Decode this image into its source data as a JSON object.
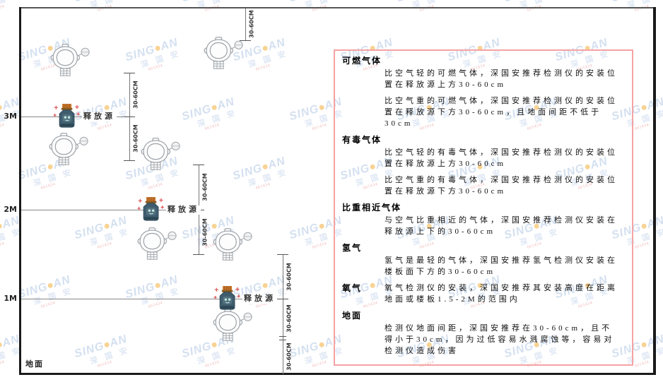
{
  "diagram": {
    "axis": [
      "3M",
      "2M",
      "1M"
    ],
    "ground_label": "地面",
    "release_source_label": "释放源",
    "dim_label": "30-60CM"
  },
  "panel": {
    "sections": [
      {
        "header": "可燃气体",
        "paragraphs": [
          "比空气轻的可燃气体，深国安推荐检测仪的安装位置在释放源上方30-60cm",
          "比空气重的可燃气体，深国安推荐检测仪的安装位置在释放源下方30-60cm，且地面间距不低于30cm"
        ]
      },
      {
        "header": "有毒气体",
        "paragraphs": [
          "比空气轻的有毒气体，深国安推荐检测仪的安装位置在释放源上方30-60cm",
          "比空气重的有毒气体，深国安推荐检测仪的安装位置在释放源下方30-60cm"
        ]
      },
      {
        "header": "比重相近气体",
        "paragraphs": [
          "与空气比重相近的气体，深国安推荐检测仪安装在释放源上下的30-60cm"
        ]
      },
      {
        "header": "氢气",
        "paragraphs": [
          "氢气是最轻的气体，深国安推荐氢气检测仪安装在楼板面下方的30-60cm"
        ]
      },
      {
        "header": "氧气",
        "paragraphs": [
          "氧气检测仪的安装，深国安推荐其安装高度在距离地面或楼板1.5-2M的范围内"
        ]
      },
      {
        "header": "地面",
        "paragraphs": [
          "检测仪地面间距，深国安推荐在30-60cm，且不得小于30cm，因为过低容易水溅腐蚀等，容易对检测仪造成伤害"
        ]
      }
    ]
  },
  "watermark": {
    "brand_left": "SING",
    "brand_right": "AN",
    "cn": "深 国 安",
    "code": "661434"
  },
  "colors": {
    "panel_border": "#f5a3a3",
    "watermark_blue": "#aac2e2",
    "watermark_cn": "#bfd0ea",
    "watermark_dot": "#f0a82c",
    "watermark_code_red": "#e07070",
    "line_gray": "#888888",
    "frame_black": "#1a1a1a",
    "bottle_body": "#3f5d6e",
    "bottle_cap": "#c8762c",
    "sparkle_red": "#e05555",
    "detector_outline": "#a0a6ac"
  }
}
